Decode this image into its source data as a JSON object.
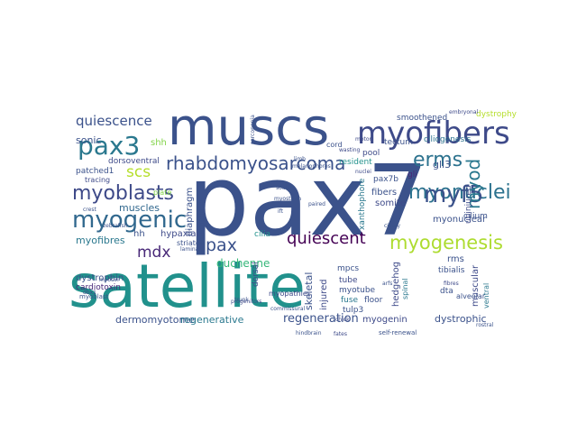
{
  "words": [
    {
      "text": "pax7",
      "color": "#3b528b"
    },
    {
      "text": "satellite",
      "color": "#21918c"
    },
    {
      "text": "muscs",
      "color": "#3b528b"
    },
    {
      "text": "myofibers",
      "color": "#3e4a89"
    },
    {
      "text": "pax3",
      "color": "#2a788e"
    },
    {
      "text": "rhabdomyosarcoma",
      "color": "#3b528b"
    },
    {
      "text": "myogenic",
      "color": "#31688e"
    },
    {
      "text": "myoblasts",
      "color": "#3e4a89"
    },
    {
      "text": "myonuclei",
      "color": "#2c728e"
    },
    {
      "text": "myogenesis",
      "color": "#addc30"
    },
    {
      "text": "quiescent",
      "color": "#440154"
    },
    {
      "text": "quiescence",
      "color": "#3b528b"
    },
    {
      "text": "erms",
      "color": "#2c728e"
    },
    {
      "text": "myf5",
      "color": "#3b528b"
    },
    {
      "text": "myod",
      "color": "#2a788e"
    },
    {
      "text": "scs",
      "color": "#b5de2b"
    },
    {
      "text": "mdx",
      "color": "#482878"
    },
    {
      "text": "pax",
      "color": "#3b528b"
    },
    {
      "text": "shh",
      "color": "#84d44b"
    },
    {
      "text": "sonic",
      "color": "#3b528b"
    },
    {
      "text": "dorsoventral",
      "color": "#3e4a89"
    },
    {
      "text": "muscles",
      "color": "#31688e"
    },
    {
      "text": "diaphragm",
      "color": "#3b528b"
    },
    {
      "text": "hypaxial",
      "color": "#3e4a89"
    },
    {
      "text": "myofibres",
      "color": "#2a788e"
    },
    {
      "text": "dystrophin",
      "color": "#3b528b"
    },
    {
      "text": "cardiotoxin",
      "color": "#482878"
    },
    {
      "text": "duchenne",
      "color": "#35b779"
    },
    {
      "text": "dermomyotome",
      "color": "#3b528b"
    },
    {
      "text": "regenerative",
      "color": "#2a788e"
    },
    {
      "text": "regeneration",
      "color": "#3b528b"
    },
    {
      "text": "myogenin",
      "color": "#3e4a89"
    },
    {
      "text": "dystrophic",
      "color": "#3b528b"
    },
    {
      "text": "skeletal",
      "color": "#3b528b"
    },
    {
      "text": "injured",
      "color": "#3e4a89"
    },
    {
      "text": "cilia",
      "color": "#21918c"
    },
    {
      "text": "cilium",
      "color": "#3b528b"
    },
    {
      "text": "ciliogenesis",
      "color": "#2c728e"
    },
    {
      "text": "gli3",
      "color": "#3b528b"
    },
    {
      "text": "gli",
      "color": "#482878"
    },
    {
      "text": "fibers",
      "color": "#3b528b"
    },
    {
      "text": "somite",
      "color": "#3e4a89"
    },
    {
      "text": "pax7b",
      "color": "#3b528b"
    },
    {
      "text": "xanthophore",
      "color": "#2a788e"
    },
    {
      "text": "myonuclear",
      "color": "#3b528b"
    },
    {
      "text": "uninjured",
      "color": "#3e4a89"
    },
    {
      "text": "resident",
      "color": "#21918c"
    },
    {
      "text": "smoothened",
      "color": "#3b528b"
    },
    {
      "text": "dystrophy",
      "color": "#b5de2b"
    },
    {
      "text": "tectum",
      "color": "#3b528b"
    },
    {
      "text": "pool",
      "color": "#3e4a89"
    },
    {
      "text": "cord",
      "color": "#3b528b"
    },
    {
      "text": "myotube",
      "color": "#3b528b"
    },
    {
      "text": "tube",
      "color": "#3e4a89"
    },
    {
      "text": "fuse",
      "color": "#2a788e"
    },
    {
      "text": "floor",
      "color": "#3b528b"
    },
    {
      "text": "hedgehog",
      "color": "#3e4a89"
    },
    {
      "text": "tulp3",
      "color": "#3b528b"
    },
    {
      "text": "mpcs",
      "color": "#3b528b"
    },
    {
      "text": "spinal",
      "color": "#2a788e"
    },
    {
      "text": "dta",
      "color": "#3b528b"
    },
    {
      "text": "muscular",
      "color": "#3e4a89"
    },
    {
      "text": "rms",
      "color": "#3b528b"
    },
    {
      "text": "tibialis",
      "color": "#3b528b"
    },
    {
      "text": "ventral",
      "color": "#2a788e"
    },
    {
      "text": "alveolar",
      "color": "#3b528b"
    },
    {
      "text": "dorsal",
      "color": "#3e4a89"
    },
    {
      "text": "hh",
      "color": "#3b528b"
    },
    {
      "text": "patched1",
      "color": "#3b528b"
    },
    {
      "text": "tracing",
      "color": "#3e4a89"
    },
    {
      "text": "plate",
      "color": "#84d44b"
    },
    {
      "text": "interneurons",
      "color": "#3b528b"
    },
    {
      "text": "striated",
      "color": "#3b528b"
    },
    {
      "text": "myopathies",
      "color": "#3e4a89"
    },
    {
      "text": "myoblast",
      "color": "#3b528b"
    },
    {
      "text": "self-renewal",
      "color": "#3b528b"
    },
    {
      "text": "fates",
      "color": "#3e4a89"
    },
    {
      "text": "hindbrain",
      "color": "#3b528b"
    },
    {
      "text": "commissural",
      "color": "#3b528b"
    },
    {
      "text": "motor",
      "color": "#3e4a89"
    },
    {
      "text": "limb",
      "color": "#3b528b"
    },
    {
      "text": "myostatin",
      "color": "#3b528b"
    },
    {
      "text": "wasting",
      "color": "#3e4a89"
    },
    {
      "text": "paired",
      "color": "#3b528b"
    },
    {
      "text": "ift",
      "color": "#3b528b"
    },
    {
      "text": "chick",
      "color": "#3e4a89"
    },
    {
      "text": "trunk",
      "color": "#3b528b"
    },
    {
      "text": "myosin",
      "color": "#3b528b"
    },
    {
      "text": "dbx1",
      "color": "#3e4a89"
    },
    {
      "text": "crest",
      "color": "#3b528b"
    },
    {
      "text": "lamina",
      "color": "#3b528b"
    },
    {
      "text": "progenitors",
      "color": "#3e4a89"
    },
    {
      "text": "rostral",
      "color": "#3b528b"
    },
    {
      "text": "ciliary",
      "color": "#3b528b"
    },
    {
      "text": "fibres",
      "color": "#3e4a89"
    },
    {
      "text": "arfs",
      "color": "#3b528b"
    },
    {
      "text": "sarcopenia",
      "color": "#3b528b"
    },
    {
      "text": "embryonal",
      "color": "#3e4a89"
    },
    {
      "text": "melanophores",
      "color": "#3b528b"
    },
    {
      "text": "source",
      "color": "#3b528b"
    },
    {
      "text": "nuclei",
      "color": "#3e4a89"
    },
    {
      "text": "zebrafish",
      "color": "#3b528b"
    }
  ]
}
